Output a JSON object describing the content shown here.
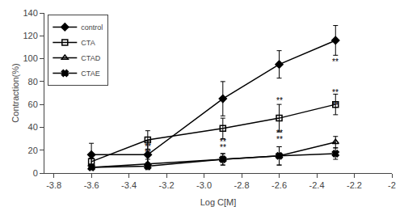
{
  "chart_data": {
    "type": "line",
    "x": [
      -3.6,
      -3.3,
      -2.9,
      -2.6,
      -2.3
    ],
    "series": [
      {
        "name": "control",
        "values": [
          16,
          16,
          65,
          95,
          116
        ],
        "yerr": [
          10,
          12,
          15,
          12,
          13
        ],
        "marker": "diamond",
        "line_style": "solid"
      },
      {
        "name": "CTA",
        "values": [
          10,
          29,
          39,
          48,
          60
        ],
        "yerr": [
          3,
          8,
          9,
          12,
          9
        ],
        "marker": "square-open",
        "line_style": "solid"
      },
      {
        "name": "CTAD",
        "values": [
          5,
          8,
          12,
          15,
          27
        ],
        "yerr": [
          2,
          4,
          5,
          8,
          5
        ],
        "marker": "triangle-up-open",
        "line_style": "solid"
      },
      {
        "name": "CTAE",
        "values": [
          5,
          6,
          12,
          15,
          17
        ],
        "yerr": [
          2,
          3,
          5,
          8,
          5
        ],
        "marker": "x",
        "line_style": "solid"
      }
    ],
    "color": "#000000",
    "xlim": [
      -3.85,
      -2.0
    ],
    "ylim": [
      0,
      140
    ],
    "xticks": [
      -3.8,
      -3.6,
      -3.4,
      -3.2,
      {
        "value": -3.0,
        "label": "-3.0"
      },
      -2.8,
      -2.6,
      -2.4,
      -2.2,
      -2
    ],
    "yticks": [
      0,
      20,
      40,
      60,
      80,
      100,
      120,
      140
    ],
    "xlabel": "Log C[M]",
    "ylabel": "Contraction(%)",
    "legend": "upper left",
    "grid": false,
    "annotations": [
      {
        "x": -3.3,
        "y": 18,
        "text": "**"
      },
      {
        "x": -3.3,
        "y": 13,
        "text": "**"
      },
      {
        "x": -2.9,
        "y": 22,
        "text": "**"
      },
      {
        "x": -2.9,
        "y": 17,
        "text": "**"
      },
      {
        "x": -2.6,
        "y": 58,
        "text": "**"
      },
      {
        "x": -2.6,
        "y": 30,
        "text": "**"
      },
      {
        "x": -2.6,
        "y": 24,
        "text": "**"
      },
      {
        "x": -2.3,
        "y": 92,
        "text": "**"
      },
      {
        "x": -2.3,
        "y": 65,
        "text": "**"
      },
      {
        "x": -2.3,
        "y": 54,
        "text": "**"
      }
    ]
  }
}
